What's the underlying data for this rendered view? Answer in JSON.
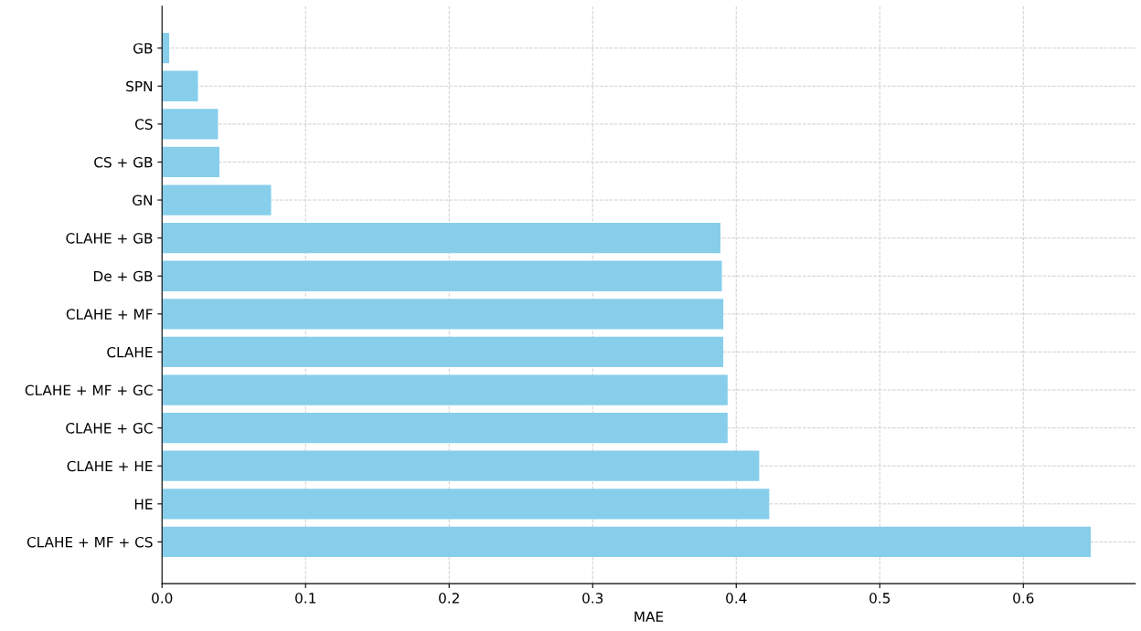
{
  "chart_data": {
    "type": "bar",
    "orientation": "horizontal",
    "xlabel": "MAE",
    "categories": [
      "GB",
      "SPN",
      "CS",
      "CS + GB",
      "GN",
      "CLAHE + GB",
      "De + GB",
      "CLAHE + MF",
      "CLAHE",
      "CLAHE + MF + GC",
      "CLAHE + GC",
      "CLAHE + HE",
      "HE",
      "CLAHE + MF + CS"
    ],
    "values": [
      0.005,
      0.025,
      0.039,
      0.04,
      0.076,
      0.389,
      0.39,
      0.391,
      0.391,
      0.394,
      0.394,
      0.416,
      0.423,
      0.647
    ],
    "color": "#87ceeb",
    "xlim": [
      0,
      0.678
    ],
    "xticks": [
      {
        "value": 0,
        "label": "0.0"
      },
      0.1,
      0.2,
      0.3,
      0.4,
      0.5,
      0.6
    ],
    "grid": true,
    "line_style": "dashed"
  }
}
